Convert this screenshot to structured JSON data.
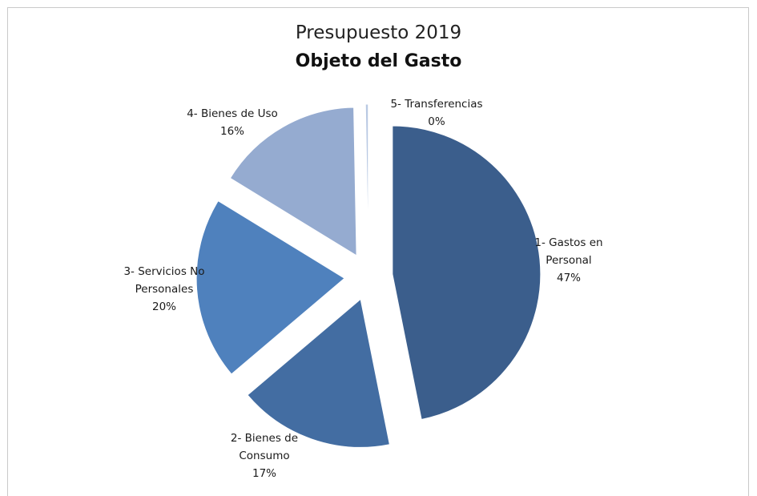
{
  "chart_data": {
    "type": "pie",
    "title": "Presupuesto 2019",
    "subtitle": "Objeto del Gasto",
    "start_angle_deg": 0,
    "slices": [
      {
        "label_lines": [
          "1- Gastos en",
          "Personal"
        ],
        "value": 47,
        "percent_label": "47%",
        "color": "#3b5e8c"
      },
      {
        "label_lines": [
          "2- Bienes de",
          "Consumo"
        ],
        "value": 17,
        "percent_label": "17%",
        "color": "#436da2"
      },
      {
        "label_lines": [
          "3- Servicios No",
          "Personales"
        ],
        "value": 20,
        "percent_label": "20%",
        "color": "#4f81bd"
      },
      {
        "label_lines": [
          "4- Bienes de Uso"
        ],
        "value": 16,
        "percent_label": "16%",
        "color": "#95abd0"
      },
      {
        "label_lines": [
          "5- Transferencias"
        ],
        "value": 0.3,
        "percent_label": "0%",
        "color": "#b9c9e3"
      }
    ]
  }
}
